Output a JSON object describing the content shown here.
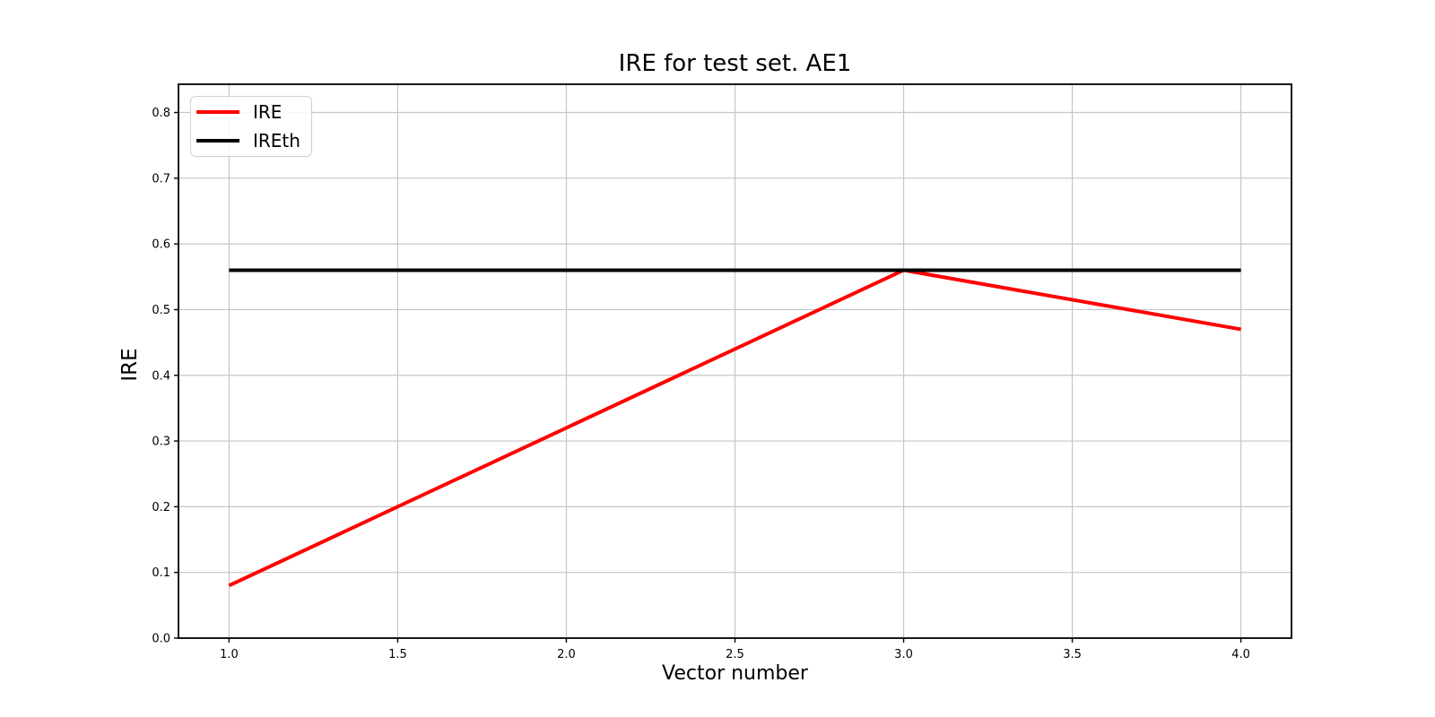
{
  "figure": {
    "background_color": "#ffffff",
    "text_color": "#000000"
  },
  "chart_data": {
    "type": "line",
    "title": "IRE for test set. AE1",
    "xlabel": "Vector number",
    "ylabel": "IRE",
    "xlim": [
      0.85,
      4.15
    ],
    "ylim": [
      0.0,
      0.843
    ],
    "xticks": [
      1.0,
      1.5,
      2.0,
      2.5,
      3.0,
      3.5,
      4.0
    ],
    "yticks": [
      0.0,
      0.1,
      0.2,
      0.3,
      0.4,
      0.5,
      0.6,
      0.7,
      0.8
    ],
    "tick_decimals": 1,
    "grid": true,
    "grid_color": "#c6c6c6",
    "spine_color": "#000000",
    "legend": {
      "position": "upper-left",
      "entries": [
        "IRE",
        "IREth"
      ]
    },
    "series": [
      {
        "name": "IRE",
        "color": "#ff0000",
        "x": [
          1,
          2,
          3,
          4
        ],
        "y": [
          0.08,
          0.32,
          0.56,
          0.47
        ]
      },
      {
        "name": "IREth",
        "color": "#000000",
        "x": [
          1,
          4
        ],
        "y": [
          0.56,
          0.56
        ]
      }
    ]
  }
}
